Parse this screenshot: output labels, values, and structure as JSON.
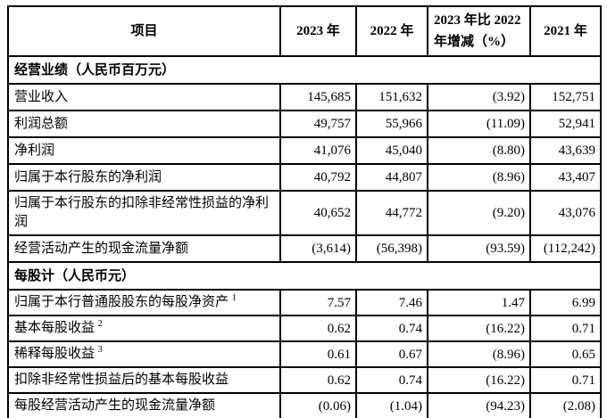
{
  "page": {
    "background": "#ffffff",
    "text_color": "#000000",
    "border_color": "#000000"
  },
  "table": {
    "header": {
      "item": "项目",
      "y2023": "2023 年",
      "y2022": "2022 年",
      "change": "2023 年比 2022\n年增减（%）",
      "y2021": "2021 年"
    },
    "sections": [
      {
        "title": "经营业绩（人民币百万元）",
        "rows": [
          {
            "label": "营业收入",
            "sup": "",
            "y2023": "145,685",
            "y2022": "151,632",
            "change": "(3.92)",
            "y2021": "152,751"
          },
          {
            "label": "利润总额",
            "sup": "",
            "y2023": "49,757",
            "y2022": "55,966",
            "change": "(11.09)",
            "y2021": "52,941"
          },
          {
            "label": "净利润",
            "sup": "",
            "y2023": "41,076",
            "y2022": "45,040",
            "change": "(8.80)",
            "y2021": "43,639"
          },
          {
            "label": "归属于本行股东的净利润",
            "sup": "",
            "y2023": "40,792",
            "y2022": "44,807",
            "change": "(8.96)",
            "y2021": "43,407"
          },
          {
            "label": "归属于本行股东的扣除非经常性损益的净利润",
            "sup": "",
            "y2023": "40,652",
            "y2022": "44,772",
            "change": "(9.20)",
            "y2021": "43,076"
          },
          {
            "label": "经营活动产生的现金流量净额",
            "sup": "",
            "y2023": "(3,614)",
            "y2022": "(56,398)",
            "change": "(93.59)",
            "y2021": "(112,242)"
          }
        ]
      },
      {
        "title": "每股计（人民币元）",
        "rows": [
          {
            "label": "归属于本行普通股股东的每股净资产",
            "sup": "1",
            "y2023": "7.57",
            "y2022": "7.46",
            "change": "1.47",
            "y2021": "6.99"
          },
          {
            "label": "基本每股收益",
            "sup": "2",
            "y2023": "0.62",
            "y2022": "0.74",
            "change": "(16.22)",
            "y2021": "0.71"
          },
          {
            "label": "稀释每股收益",
            "sup": "3",
            "y2023": "0.61",
            "y2022": "0.67",
            "change": "(8.96)",
            "y2021": "0.65"
          },
          {
            "label": "扣除非经常性损益后的基本每股收益",
            "sup": "",
            "y2023": "0.62",
            "y2022": "0.74",
            "change": "(16.22)",
            "y2021": "0.71"
          },
          {
            "label": "每股经营活动产生的现金流量净额",
            "sup": "",
            "y2023": "(0.06)",
            "y2022": "(1.04)",
            "change": "(94.23)",
            "y2021": "(2.08)"
          }
        ]
      }
    ]
  }
}
